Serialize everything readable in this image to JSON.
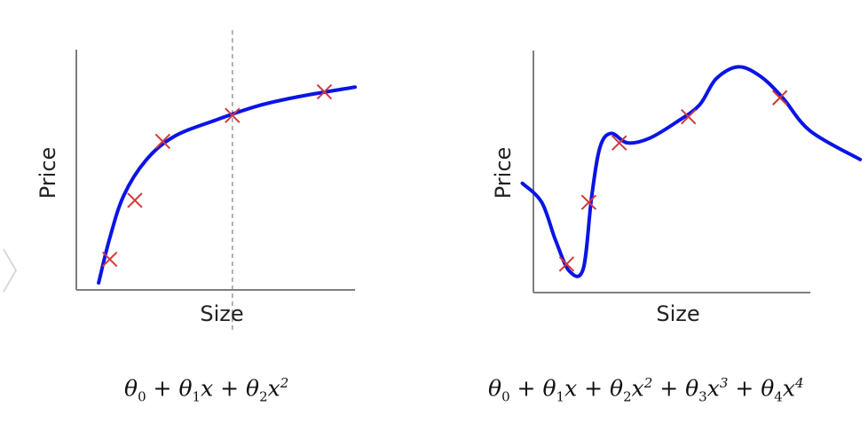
{
  "chart_data": [
    {
      "type": "scatter",
      "title": "",
      "xlabel": "Size",
      "ylabel": "Price",
      "xlim": [
        0,
        10
      ],
      "ylim": [
        0,
        10
      ],
      "grid": false,
      "points": [
        [
          1.2,
          1.3
        ],
        [
          2.1,
          3.8
        ],
        [
          3.1,
          6.3
        ],
        [
          5.6,
          7.4
        ],
        [
          8.9,
          8.4
        ]
      ],
      "fit_curve": [
        [
          0.8,
          0.3
        ],
        [
          1.2,
          2.2
        ],
        [
          1.7,
          4.0
        ],
        [
          2.5,
          5.5
        ],
        [
          3.5,
          6.5
        ],
        [
          5.0,
          7.2
        ],
        [
          6.5,
          7.8
        ],
        [
          8.0,
          8.2
        ],
        [
          10.0,
          8.6
        ]
      ],
      "fit_formula": "θ₀ + θ₁x + θ₂x²",
      "marker_reference_x": 5.6
    },
    {
      "type": "scatter",
      "title": "",
      "xlabel": "Size",
      "ylabel": "Price",
      "xlim": [
        0,
        10
      ],
      "ylim": [
        0,
        10
      ],
      "grid": false,
      "points": [
        [
          1.2,
          1.2
        ],
        [
          2.0,
          3.8
        ],
        [
          3.1,
          6.3
        ],
        [
          5.6,
          7.4
        ],
        [
          8.9,
          8.2
        ]
      ],
      "fit_curve": [
        [
          -0.4,
          4.6
        ],
        [
          0.3,
          3.8
        ],
        [
          0.8,
          2.2
        ],
        [
          1.3,
          0.9
        ],
        [
          1.8,
          1.0
        ],
        [
          2.1,
          4.0
        ],
        [
          2.4,
          6.1
        ],
        [
          2.8,
          6.7
        ],
        [
          3.4,
          6.3
        ],
        [
          4.2,
          6.5
        ],
        [
          5.2,
          7.2
        ],
        [
          6.0,
          7.9
        ],
        [
          6.6,
          9.0
        ],
        [
          7.4,
          9.5
        ],
        [
          8.2,
          9.1
        ],
        [
          9.0,
          8.2
        ],
        [
          10.0,
          6.8
        ],
        [
          11.8,
          5.6
        ]
      ],
      "fit_formula": "θ₀ + θ₁x + θ₂x² + θ₃x³ + θ₄x⁴"
    }
  ],
  "labels": {
    "left": {
      "xlabel": "Size",
      "ylabel": "Price"
    },
    "right": {
      "xlabel": "Size",
      "ylabel": "Price"
    }
  },
  "colors": {
    "curve": "#0a14e6",
    "marker": "#d03a3a",
    "axis": "#7f7f7f",
    "reference_line": "#8a8a8a"
  },
  "icons": {
    "next": "chevron-right-icon"
  }
}
